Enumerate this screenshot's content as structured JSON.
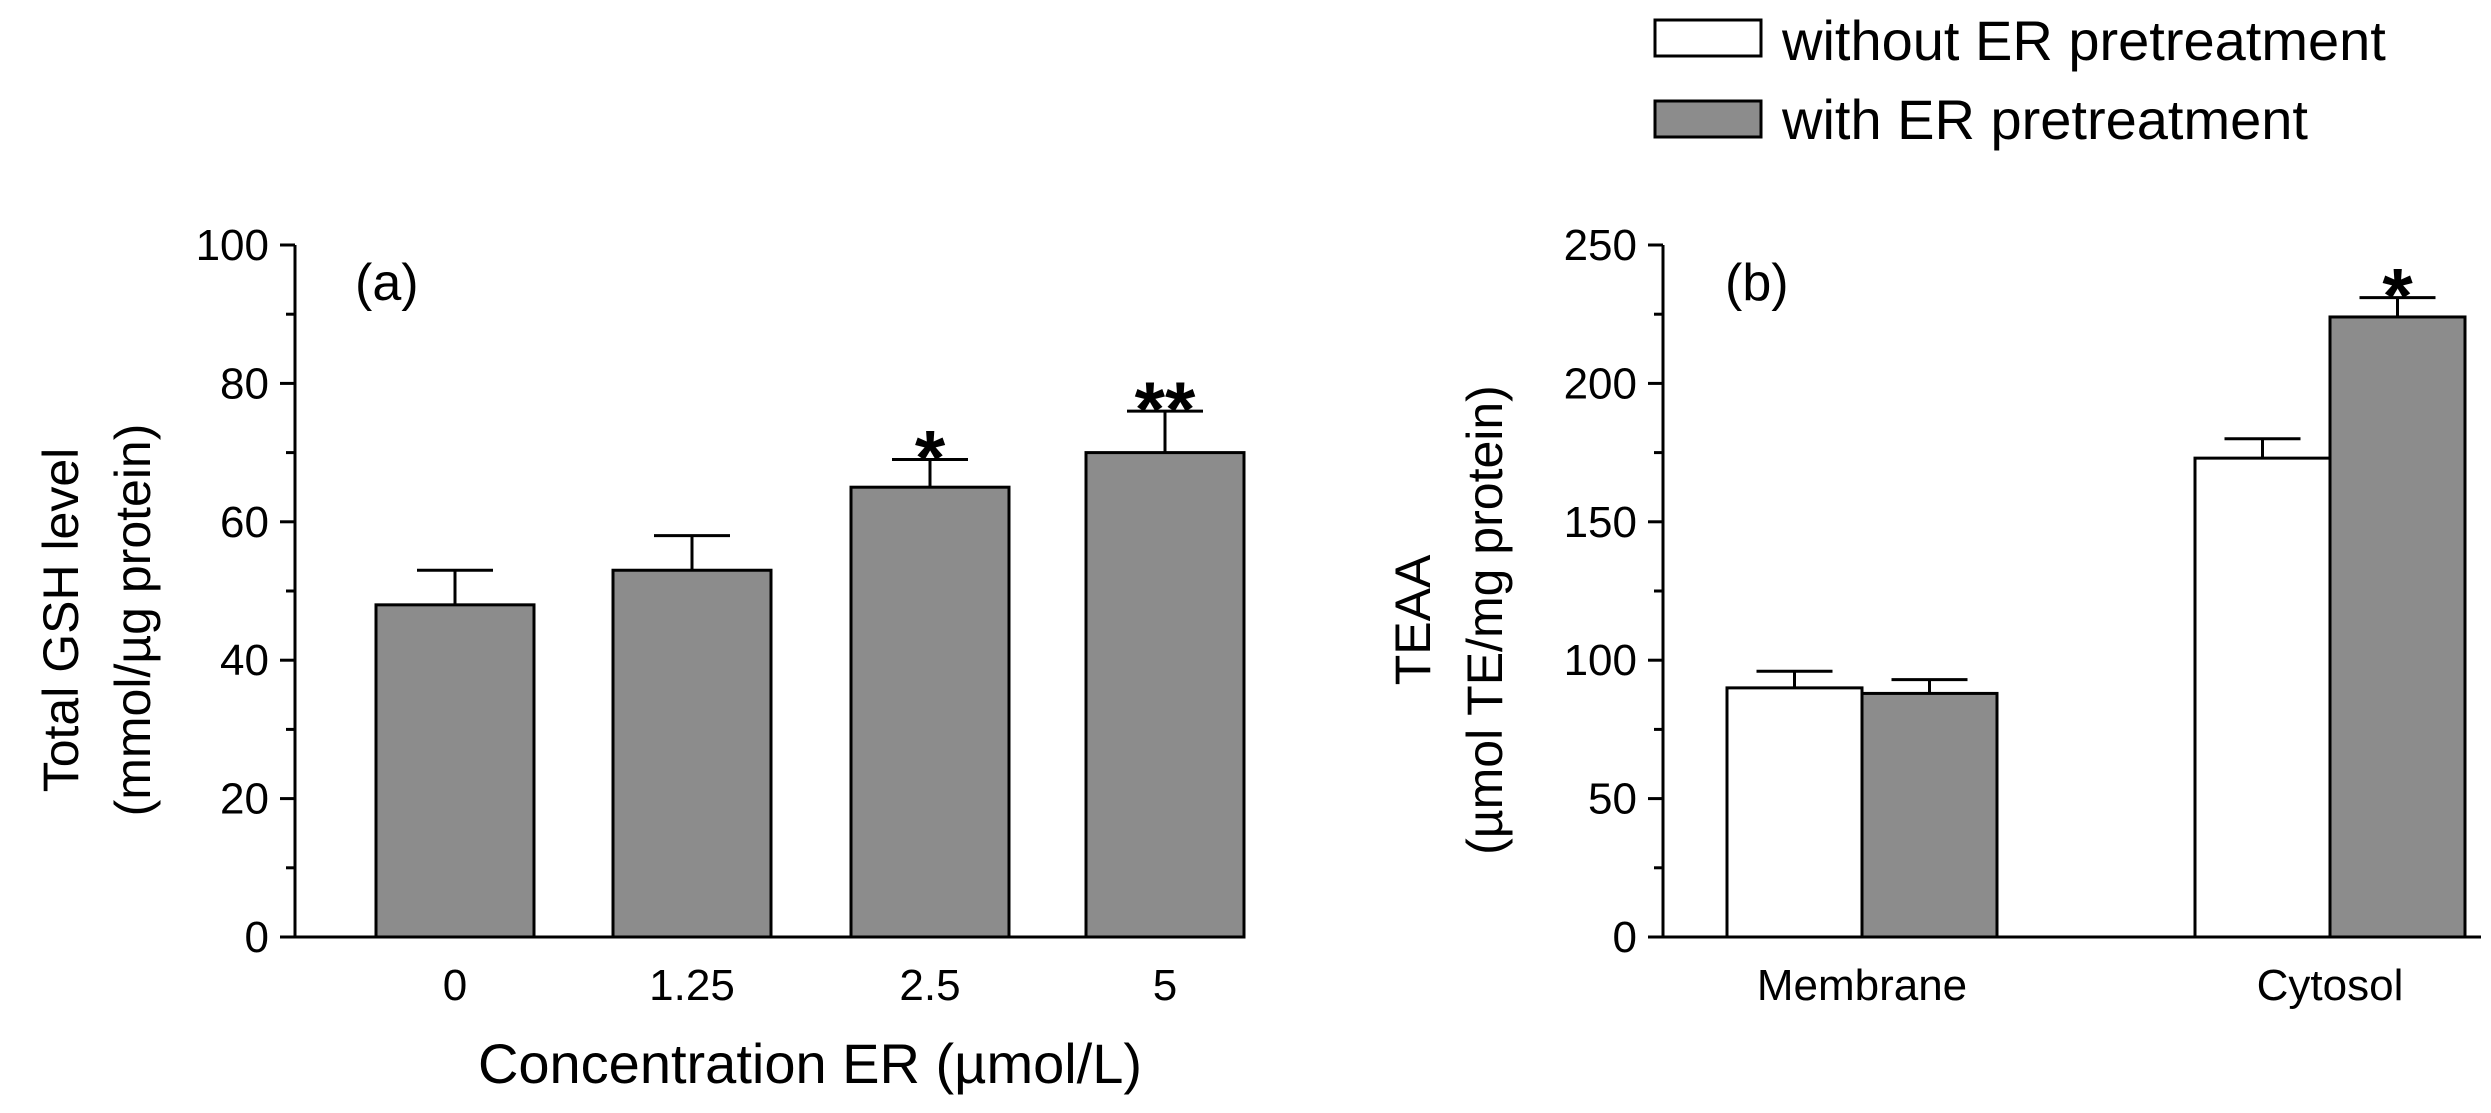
{
  "legend": {
    "items": [
      {
        "label": "without ER pretreatment",
        "color": "#ffffff"
      },
      {
        "label": "with ER pretreatment",
        "color": "#8c8c8c"
      }
    ]
  },
  "chart_data": [
    {
      "type": "bar",
      "panel_label": "(a)",
      "title": "",
      "categories": [
        "0",
        "1.25",
        "2.5",
        "5"
      ],
      "series": [
        {
          "name": "with ER pretreatment",
          "color": "#8c8c8c",
          "values": [
            48,
            53,
            65,
            70
          ],
          "errors": [
            5,
            5,
            4,
            6
          ]
        }
      ],
      "significance": [
        "",
        "",
        "*",
        "**"
      ],
      "ylabel_line1": "Total GSH level",
      "ylabel_line2": "(mmol/µg protein)",
      "xlabel": "Concentration ER (µmol/L)",
      "ylim": [
        0,
        100
      ],
      "yticks": [
        0,
        20,
        40,
        60,
        80,
        100
      ],
      "ytick_labels": [
        "0",
        "20",
        "40",
        "60",
        "80",
        "100"
      ],
      "grid": false
    },
    {
      "type": "bar",
      "panel_label": "(b)",
      "title": "",
      "categories": [
        "Membrane",
        "Cytosol"
      ],
      "series": [
        {
          "name": "without ER pretreatment",
          "color": "#ffffff",
          "values": [
            90,
            173
          ],
          "errors": [
            6,
            7
          ],
          "significance": [
            "",
            ""
          ]
        },
        {
          "name": "with ER pretreatment",
          "color": "#8c8c8c",
          "values": [
            88,
            224
          ],
          "errors": [
            5,
            7
          ],
          "significance": [
            "",
            "*"
          ]
        }
      ],
      "ylabel_line1": "TEAA",
      "ylabel_line2": "(µmol TE/mg protein)",
      "xlabel": "",
      "ylim": [
        0,
        250
      ],
      "yticks": [
        0,
        50,
        100,
        150,
        200,
        250
      ],
      "ytick_labels": [
        "0",
        "50",
        "100",
        "150",
        "200",
        "250"
      ],
      "grid": false
    }
  ]
}
